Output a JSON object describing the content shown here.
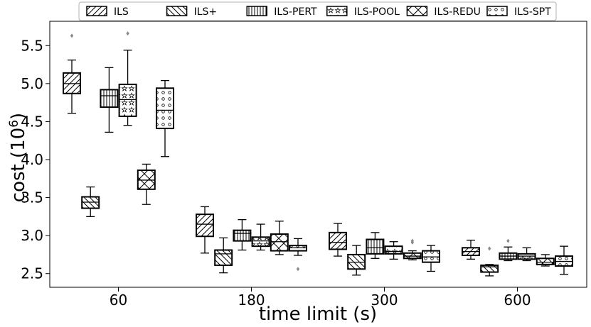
{
  "chart_data": {
    "type": "box",
    "xlabel": "time limit (s)",
    "ylabel_base": "cost (10",
    "ylabel_exp": "6",
    "ylabel_close": ")",
    "categories": [
      "60",
      "180",
      "300",
      "600"
    ],
    "ylim": [
      2.32,
      5.82
    ],
    "yticks": [
      2.5,
      3.0,
      3.5,
      4.0,
      4.5,
      5.0,
      5.5
    ],
    "ytick_labels": [
      "2.5",
      "3.0",
      "3.5",
      "4.0",
      "4.5",
      "5.0",
      "5.5"
    ],
    "legend_position": "top",
    "series": [
      {
        "name": "ILS",
        "hatch": "diag-up",
        "stats": [
          {
            "whislo": 4.61,
            "q1": 4.87,
            "med": 5.0,
            "q3": 5.14,
            "whishi": 5.31,
            "fliers": [
              5.63
            ]
          },
          {
            "whislo": 2.77,
            "q1": 2.99,
            "med": 3.15,
            "q3": 3.28,
            "whishi": 3.38,
            "fliers": []
          },
          {
            "whislo": 2.73,
            "q1": 2.82,
            "med": 2.91,
            "q3": 3.04,
            "whishi": 3.16,
            "fliers": []
          },
          {
            "whislo": 2.69,
            "q1": 2.74,
            "med": 2.79,
            "q3": 2.84,
            "whishi": 2.94,
            "fliers": []
          }
        ]
      },
      {
        "name": "ILS+",
        "hatch": "diag-down",
        "stats": [
          {
            "whislo": 3.25,
            "q1": 3.36,
            "med": 3.44,
            "q3": 3.51,
            "whishi": 3.64,
            "fliers": []
          },
          {
            "whislo": 2.51,
            "q1": 2.61,
            "med": 2.76,
            "q3": 2.81,
            "whishi": 2.97,
            "fliers": []
          },
          {
            "whislo": 2.48,
            "q1": 2.56,
            "med": 2.65,
            "q3": 2.75,
            "whishi": 2.87,
            "fliers": []
          },
          {
            "whislo": 2.47,
            "q1": 2.52,
            "med": 2.59,
            "q3": 2.61,
            "whishi": 2.62,
            "fliers": [
              2.83
            ]
          }
        ]
      },
      {
        "name": "ILS-PERT",
        "hatch": "vertical",
        "stats": [
          {
            "whislo": 4.36,
            "q1": 4.69,
            "med": 4.84,
            "q3": 4.92,
            "whishi": 5.21,
            "fliers": []
          },
          {
            "whislo": 2.81,
            "q1": 2.93,
            "med": 3.03,
            "q3": 3.07,
            "whishi": 3.21,
            "fliers": []
          },
          {
            "whislo": 2.7,
            "q1": 2.76,
            "med": 2.84,
            "q3": 2.95,
            "whishi": 3.04,
            "fliers": []
          },
          {
            "whislo": 2.67,
            "q1": 2.69,
            "med": 2.73,
            "q3": 2.77,
            "whishi": 2.85,
            "fliers": [
              2.93
            ]
          }
        ]
      },
      {
        "name": "ILS-POOL",
        "hatch": "stars",
        "stats": [
          {
            "whislo": 4.45,
            "q1": 4.57,
            "med": 4.79,
            "q3": 4.99,
            "whishi": 5.44,
            "fliers": [
              5.66
            ]
          },
          {
            "whislo": 2.81,
            "q1": 2.86,
            "med": 2.93,
            "q3": 2.98,
            "whishi": 3.15,
            "fliers": []
          },
          {
            "whislo": 2.69,
            "q1": 2.76,
            "med": 2.79,
            "q3": 2.86,
            "whishi": 2.92,
            "fliers": []
          },
          {
            "whislo": 2.67,
            "q1": 2.69,
            "med": 2.73,
            "q3": 2.76,
            "whishi": 2.84,
            "fliers": []
          }
        ]
      },
      {
        "name": "ILS-REDU",
        "hatch": "cross",
        "stats": [
          {
            "whislo": 3.41,
            "q1": 3.61,
            "med": 3.73,
            "q3": 3.86,
            "whishi": 3.94,
            "fliers": []
          },
          {
            "whislo": 2.75,
            "q1": 2.8,
            "med": 2.92,
            "q3": 3.02,
            "whishi": 3.19,
            "fliers": []
          },
          {
            "whislo": 2.68,
            "q1": 2.7,
            "med": 2.73,
            "q3": 2.77,
            "whishi": 2.8,
            "fliers": [
              2.91,
              2.93
            ]
          },
          {
            "whislo": 2.6,
            "q1": 2.62,
            "med": 2.65,
            "q3": 2.7,
            "whishi": 2.75,
            "fliers": []
          }
        ]
      },
      {
        "name": "ILS-SPT",
        "hatch": "circles",
        "stats": [
          {
            "whislo": 4.04,
            "q1": 4.41,
            "med": 4.65,
            "q3": 4.94,
            "whishi": 5.04,
            "fliers": []
          },
          {
            "whislo": 2.74,
            "q1": 2.8,
            "med": 2.84,
            "q3": 2.87,
            "whishi": 2.96,
            "fliers": [
              2.56
            ]
          },
          {
            "whislo": 2.53,
            "q1": 2.65,
            "med": 2.72,
            "q3": 2.8,
            "whishi": 2.87,
            "fliers": []
          },
          {
            "whislo": 2.49,
            "q1": 2.6,
            "med": 2.66,
            "q3": 2.73,
            "whishi": 2.86,
            "fliers": []
          }
        ]
      }
    ]
  }
}
